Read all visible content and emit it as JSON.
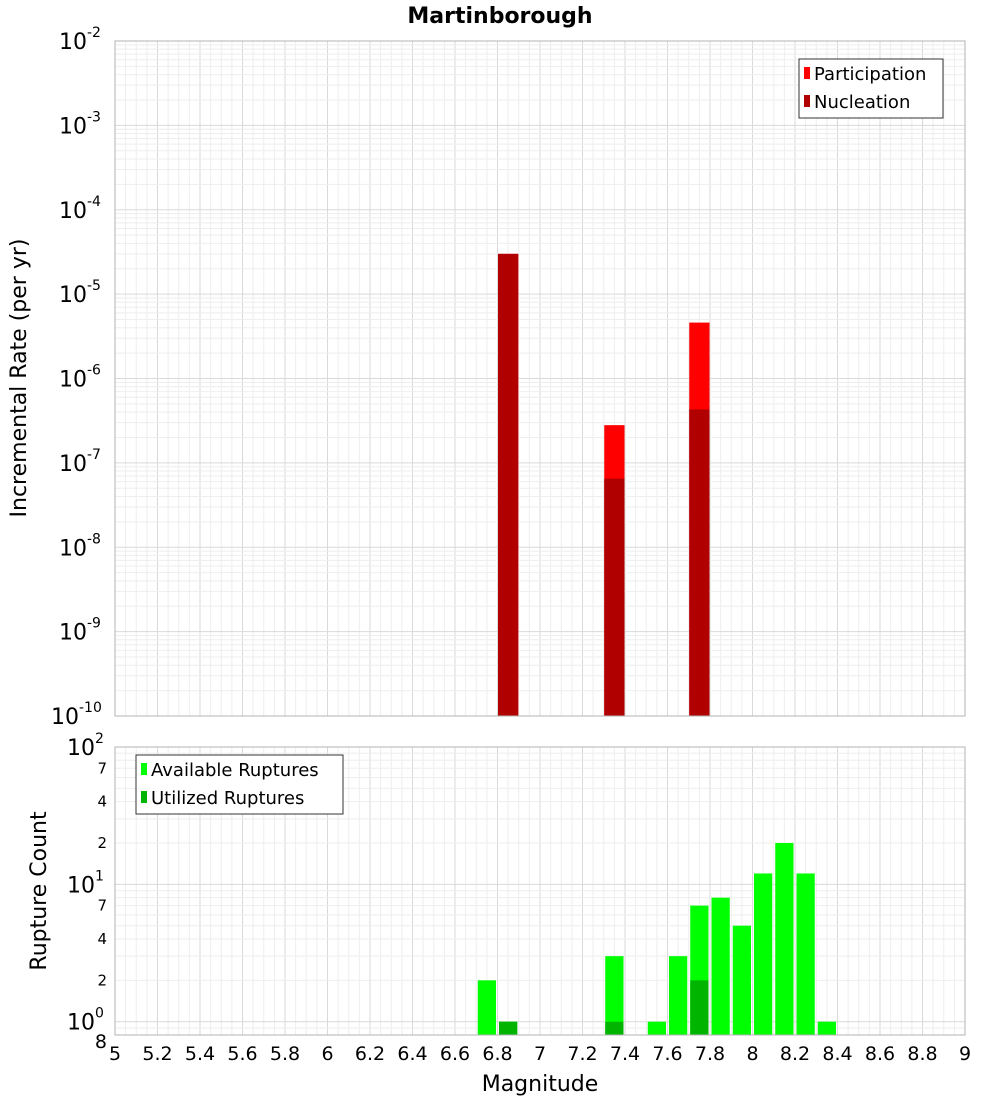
{
  "chart_data": [
    {
      "type": "bar",
      "title": "Martinborough",
      "xlabel": "",
      "ylabel": "Incremental Rate (per yr)",
      "xlim": [
        5,
        9
      ],
      "ylim": [
        1e-10,
        0.01
      ],
      "yscale": "log",
      "grid": true,
      "legend_position": "top-right",
      "bin_width": 0.1,
      "series": [
        {
          "name": "Participation",
          "color": "#ff0000",
          "points": [
            {
              "x": 6.85,
              "y": 3e-05
            },
            {
              "x": 7.35,
              "y": 2.8e-07
            },
            {
              "x": 7.75,
              "y": 4.6e-06
            }
          ]
        },
        {
          "name": "Nucleation",
          "color": "#b00000",
          "points": [
            {
              "x": 6.85,
              "y": 3e-05
            },
            {
              "x": 7.35,
              "y": 6.5e-08
            },
            {
              "x": 7.75,
              "y": 4.3e-07
            }
          ]
        }
      ],
      "y_ticks": [
        {
          "value": 0.01,
          "base": "10",
          "exp": "-2"
        },
        {
          "value": 0.001,
          "base": "10",
          "exp": "-3"
        },
        {
          "value": 0.0001,
          "base": "10",
          "exp": "-4"
        },
        {
          "value": 1e-05,
          "base": "10",
          "exp": "-5"
        },
        {
          "value": 1e-06,
          "base": "10",
          "exp": "-6"
        },
        {
          "value": 1e-07,
          "base": "10",
          "exp": "-7"
        },
        {
          "value": 1e-08,
          "base": "10",
          "exp": "-8"
        },
        {
          "value": 1e-09,
          "base": "10",
          "exp": "-9"
        },
        {
          "value": 1e-10,
          "base": "10",
          "exp": "-10"
        }
      ]
    },
    {
      "type": "bar",
      "title": "",
      "xlabel": "Magnitude",
      "ylabel": "Rupture Count",
      "xlim": [
        5,
        9
      ],
      "ylim": [
        0.8,
        100
      ],
      "yscale": "log",
      "grid": true,
      "legend_position": "top-left",
      "bin_width": 0.1,
      "series": [
        {
          "name": "Available Ruptures",
          "color": "#00ff00",
          "points": [
            {
              "x": 6.75,
              "y": 2
            },
            {
              "x": 6.85,
              "y": 1
            },
            {
              "x": 7.35,
              "y": 3
            },
            {
              "x": 7.55,
              "y": 1
            },
            {
              "x": 7.65,
              "y": 3
            },
            {
              "x": 7.75,
              "y": 7
            },
            {
              "x": 7.85,
              "y": 8
            },
            {
              "x": 7.95,
              "y": 5
            },
            {
              "x": 8.05,
              "y": 12
            },
            {
              "x": 8.15,
              "y": 20
            },
            {
              "x": 8.25,
              "y": 12
            },
            {
              "x": 8.35,
              "y": 1
            }
          ]
        },
        {
          "name": "Utilized Ruptures",
          "color": "#00b400",
          "points": [
            {
              "x": 6.85,
              "y": 1
            },
            {
              "x": 7.35,
              "y": 1
            },
            {
              "x": 7.75,
              "y": 2
            }
          ]
        }
      ],
      "y_ticks": [
        {
          "value": 100,
          "base": "10",
          "exp": "2",
          "big": true
        },
        {
          "value": 70,
          "label": "7"
        },
        {
          "value": 40,
          "label": "4"
        },
        {
          "value": 20,
          "label": "2"
        },
        {
          "value": 10,
          "base": "10",
          "exp": "1",
          "big": true
        },
        {
          "value": 7,
          "label": "7"
        },
        {
          "value": 4,
          "label": "4"
        },
        {
          "value": 2,
          "label": "2"
        },
        {
          "value": 1,
          "base": "10",
          "exp": "0",
          "big": true
        },
        {
          "value": 0.8,
          "label": "8"
        }
      ],
      "x_ticks": [
        "5",
        "5.2",
        "5.4",
        "5.6",
        "5.8",
        "6",
        "6.2",
        "6.4",
        "6.6",
        "6.8",
        "7",
        "7.2",
        "7.4",
        "7.6",
        "7.8",
        "8",
        "8.2",
        "8.4",
        "8.6",
        "8.8",
        "9"
      ]
    }
  ]
}
